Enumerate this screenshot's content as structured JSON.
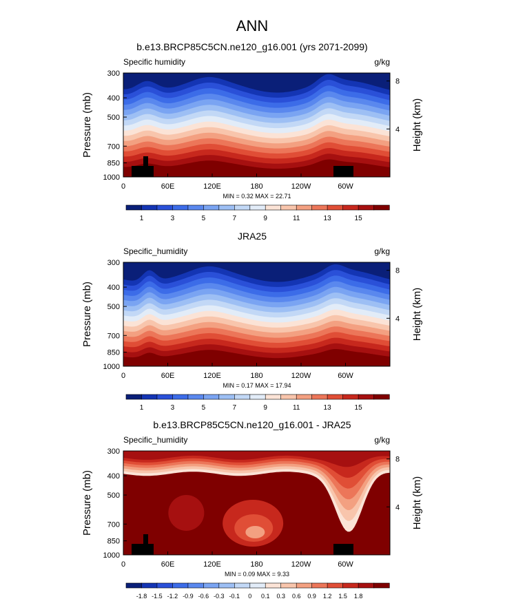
{
  "figure_title": "ANN",
  "palettes": {
    "sh": [
      "#0a1f78",
      "#1435b4",
      "#2a50d8",
      "#3c6ce8",
      "#5a88ee",
      "#7aa4f2",
      "#9dbff4",
      "#c2d8f6",
      "#e2ecf8",
      "#fbe3d6",
      "#f8c5ac",
      "#f3a081",
      "#ec7659",
      "#e04e36",
      "#c7281d",
      "#a61010",
      "#7f0000"
    ],
    "diff": [
      "#0a1f78",
      "#1435b4",
      "#2a50d8",
      "#3c6ce8",
      "#5a88ee",
      "#7aa4f2",
      "#9dbff4",
      "#c2d8f6",
      "#e2ecf8",
      "#fbe3d6",
      "#f8c5ac",
      "#f3a081",
      "#ec7659",
      "#e04e36",
      "#c7281d",
      "#a61010",
      "#7f0000"
    ]
  },
  "chart_data": [
    {
      "type": "heatmap",
      "title": "b.e13.BRCP85C5CN.ne120_g16.001 (yrs 2071-2099)",
      "left_label": "Specific humidity",
      "units": "g/kg",
      "ylabel": "Pressure (mb)",
      "ylabel_right": "Height (km)",
      "x_ticks": [
        "0",
        "60E",
        "120E",
        "180",
        "120W",
        "60W"
      ],
      "x_tick_values": [
        0,
        60,
        120,
        180,
        240,
        300
      ],
      "xlim": [
        0,
        360
      ],
      "y_ticks": [
        "300",
        "400",
        "500",
        "700",
        "850",
        "1000"
      ],
      "y_tick_values": [
        300,
        400,
        500,
        700,
        850,
        1000
      ],
      "ylim": [
        300,
        1000
      ],
      "y_right_ticks": [
        "8",
        "4"
      ],
      "y_right_values": [
        8,
        4
      ],
      "min_label": "MIN =  0.32  MAX =  22.71",
      "colorbar_labels": [
        "1",
        "3",
        "5",
        "7",
        "9",
        "11",
        "13",
        "15"
      ],
      "colorbar_min": 0.32,
      "colorbar_max": 22.71,
      "terrain": true,
      "ridges": [
        {
          "lon": 32,
          "amp": 230,
          "width": 14
        },
        {
          "lon": 115,
          "amp": 70,
          "width": 18
        },
        {
          "lon": 275,
          "amp": 160,
          "width": 12
        }
      ]
    },
    {
      "type": "heatmap",
      "title": "JRA25",
      "left_label": "Specific_humidity",
      "units": "g/kg",
      "ylabel": "Pressure (mb)",
      "ylabel_right": "Height (km)",
      "x_ticks": [
        "0",
        "60E",
        "120E",
        "180",
        "120W",
        "60W"
      ],
      "x_tick_values": [
        0,
        60,
        120,
        180,
        240,
        300
      ],
      "xlim": [
        0,
        360
      ],
      "y_ticks": [
        "300",
        "400",
        "500",
        "700",
        "850",
        "1000"
      ],
      "y_tick_values": [
        300,
        400,
        500,
        700,
        850,
        1000
      ],
      "ylim": [
        300,
        1000
      ],
      "y_right_ticks": [
        "8",
        "4"
      ],
      "y_right_values": [
        8,
        4
      ],
      "min_label": "MIN =  0.17  MAX =  17.94",
      "colorbar_labels": [
        "1",
        "3",
        "5",
        "7",
        "9",
        "11",
        "13",
        "15"
      ],
      "colorbar_min": 0.17,
      "colorbar_max": 17.94,
      "terrain": false,
      "ridges": [
        {
          "lon": 35,
          "amp": 230,
          "width": 9
        },
        {
          "lon": 115,
          "amp": 70,
          "width": 18
        },
        {
          "lon": 285,
          "amp": 120,
          "width": 12
        }
      ]
    },
    {
      "type": "heatmap",
      "title": "b.e13.BRCP85C5CN.ne120_g16.001 - JRA25",
      "left_label": "Specific_humidity",
      "units": "g/kg",
      "ylabel": "Pressure (mb)",
      "ylabel_right": "Height (km)",
      "x_ticks": [
        "0",
        "60E",
        "120E",
        "180",
        "120W",
        "60W"
      ],
      "x_tick_values": [
        0,
        60,
        120,
        180,
        240,
        300
      ],
      "xlim": [
        0,
        360
      ],
      "y_ticks": [
        "300",
        "400",
        "500",
        "700",
        "850",
        "1000"
      ],
      "y_tick_values": [
        300,
        400,
        500,
        700,
        850,
        1000
      ],
      "ylim": [
        300,
        1000
      ],
      "y_right_ticks": [
        "8",
        "4"
      ],
      "y_right_values": [
        8,
        4
      ],
      "min_label": "MIN =  0.09  MAX =  9.33",
      "colorbar_labels": [
        "-1.8",
        "-1.5",
        "-1.2",
        "-0.9",
        "-0.6",
        "-0.3",
        "-0.1",
        "0",
        "0.1",
        "0.3",
        "0.6",
        "0.9",
        "1.2",
        "1.5",
        "1.8"
      ],
      "colorbar_min": 0.09,
      "colorbar_max": 9.33,
      "terrain": true,
      "ridges": []
    }
  ]
}
